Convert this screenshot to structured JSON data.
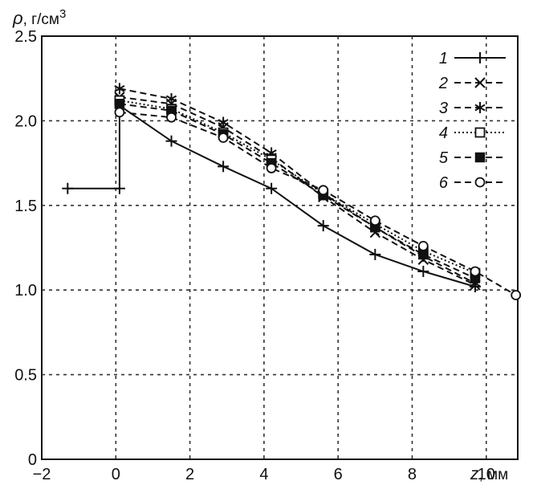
{
  "chart_data": {
    "type": "line",
    "title": "",
    "xlabel": "z, мм",
    "ylabel": "ρ, г/см3",
    "xlim": [
      -2,
      10.8
    ],
    "ylim": [
      0,
      2.5
    ],
    "x_ticks": [
      -2,
      0,
      2,
      4,
      6,
      8,
      10
    ],
    "y_ticks": [
      0,
      0.5,
      1.0,
      1.5,
      2.0,
      2.5
    ],
    "x_tick_labels": [
      "−2",
      "0",
      "2",
      "4",
      "6",
      "8",
      "10"
    ],
    "y_tick_labels": [
      "0",
      "0.5",
      "1.0",
      "1.5",
      "2.0",
      "2.5"
    ],
    "grid": true,
    "legend_position": "top-right",
    "series": [
      {
        "name": "1",
        "marker": "plus",
        "dash": "solid",
        "x": [
          -1.3,
          0.1,
          0.1,
          1.5,
          2.9,
          4.2,
          5.6,
          7.0,
          8.3,
          9.7
        ],
        "y": [
          1.6,
          1.6,
          2.09,
          1.88,
          1.73,
          1.6,
          1.38,
          1.21,
          1.11,
          1.02
        ]
      },
      {
        "name": "2",
        "marker": "x",
        "dash": "dashed",
        "x": [
          0.1,
          1.5,
          2.9,
          4.2,
          5.6,
          7.0,
          8.3,
          9.7
        ],
        "y": [
          2.14,
          2.1,
          1.96,
          1.78,
          1.55,
          1.34,
          1.18,
          1.03
        ]
      },
      {
        "name": "3",
        "marker": "asterisk",
        "dash": "dashed",
        "x": [
          0.1,
          1.5,
          2.9,
          4.2,
          5.6,
          7.0,
          8.3,
          9.7
        ],
        "y": [
          2.19,
          2.13,
          1.99,
          1.81,
          1.57,
          1.37,
          1.2,
          1.04
        ]
      },
      {
        "name": "4",
        "marker": "open-square",
        "dash": "dotted",
        "x": [
          0.1,
          1.5,
          2.9,
          4.2,
          5.6,
          7.0,
          8.3,
          9.7
        ],
        "y": [
          2.12,
          2.07,
          1.93,
          1.77,
          1.57,
          1.39,
          1.23,
          1.1
        ]
      },
      {
        "name": "5",
        "marker": "filled-square",
        "dash": "dashed",
        "x": [
          0.1,
          1.5,
          2.9,
          4.2,
          5.6,
          7.0,
          8.3,
          9.7
        ],
        "y": [
          2.1,
          2.06,
          1.92,
          1.75,
          1.56,
          1.37,
          1.21,
          1.07
        ]
      },
      {
        "name": "6",
        "marker": "open-circle",
        "dash": "dashed",
        "x": [
          0.1,
          1.5,
          2.9,
          4.2,
          5.6,
          7.0,
          8.3,
          9.7,
          10.8
        ],
        "y": [
          2.05,
          2.02,
          1.9,
          1.72,
          1.59,
          1.41,
          1.26,
          1.11,
          0.97
        ]
      }
    ]
  }
}
